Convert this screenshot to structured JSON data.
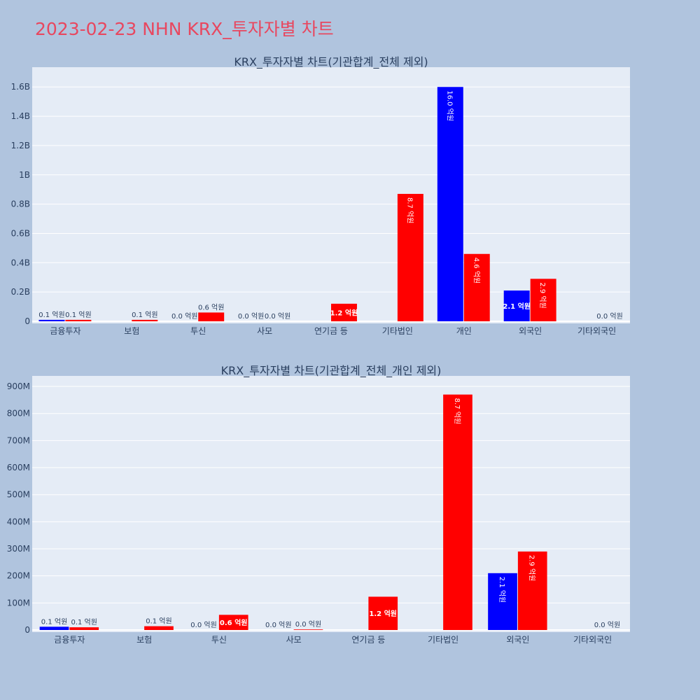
{
  "page_title": "2023-02-23 NHN KRX_투자자별 차트",
  "colors": {
    "background": "#b0c4de",
    "plot_bg": "#e5ecf6",
    "buy": "#0000ff",
    "sell": "#ff0000",
    "title": "#e8475f",
    "text": "#2a3f5f"
  },
  "chart_data": [
    {
      "type": "bar",
      "title": "KRX_투자자별 차트(기관합계_전체 제외)",
      "xlabel": "",
      "ylabel": "",
      "categories": [
        "금융투자",
        "보험",
        "투신",
        "사모",
        "연기금 등",
        "기타법인",
        "개인",
        "외국인",
        "기타외국인"
      ],
      "ylim": [
        0,
        1700000000
      ],
      "yticks": [
        0,
        200000000,
        400000000,
        600000000,
        800000000,
        1000000000,
        1200000000,
        1400000000,
        1600000000
      ],
      "ytick_labels": [
        "0",
        "0.2B",
        "0.4B",
        "0.6B",
        "0.8B",
        "1B",
        "1.2B",
        "1.4B",
        "1.6B"
      ],
      "grid": true,
      "legend": "none",
      "series": [
        {
          "color": "#0000ff",
          "values": [
            10000000,
            null,
            0,
            0,
            null,
            null,
            1600000000,
            210000000,
            null
          ],
          "labels": [
            "0.1 억원",
            "",
            "0.0 억원",
            "0.0 억원",
            "",
            "",
            "16.0 억원",
            "2.1 억원",
            ""
          ]
        },
        {
          "color": "#ff0000",
          "values": [
            10000000,
            10000000,
            60000000,
            0,
            120000000,
            870000000,
            460000000,
            290000000,
            0
          ],
          "labels": [
            "0.1 억원",
            "0.1 억원",
            "0.6 억원",
            "0.0 억원",
            "1.2 억원",
            "8.7 억원",
            "4.6 억원",
            "2.9 억원",
            "0.0 억원"
          ]
        }
      ]
    },
    {
      "type": "bar",
      "title": "KRX_투자자별 차트(기관합계_전체_개인 제외)",
      "xlabel": "",
      "ylabel": "",
      "categories": [
        "금융투자",
        "보험",
        "투신",
        "사모",
        "연기금 등",
        "기타법인",
        "외국인",
        "기타외국인"
      ],
      "ylim": [
        0,
        920000000
      ],
      "yticks": [
        0,
        100000000,
        200000000,
        300000000,
        400000000,
        500000000,
        600000000,
        700000000,
        800000000,
        900000000
      ],
      "ytick_labels": [
        "0",
        "100M",
        "200M",
        "300M",
        "400M",
        "500M",
        "600M",
        "700M",
        "800M",
        "900M"
      ],
      "grid": true,
      "legend": "none",
      "series": [
        {
          "color": "#0000ff",
          "values": [
            12000000,
            null,
            0,
            0,
            null,
            null,
            210000000,
            null
          ],
          "labels": [
            "0.1 억원",
            "",
            "0.0 억원",
            "0.0 억원",
            "",
            "",
            "2.1 억원",
            ""
          ]
        },
        {
          "color": "#ff0000",
          "values": [
            10000000,
            14000000,
            56000000,
            2000000,
            123000000,
            870000000,
            290000000,
            0
          ],
          "labels": [
            "0.1 억원",
            "0.1 억원",
            "0.6 억원",
            "0.0 억원",
            "1.2 억원",
            "8.7 억원",
            "2.9 억원",
            "0.0 억원"
          ]
        }
      ]
    }
  ]
}
